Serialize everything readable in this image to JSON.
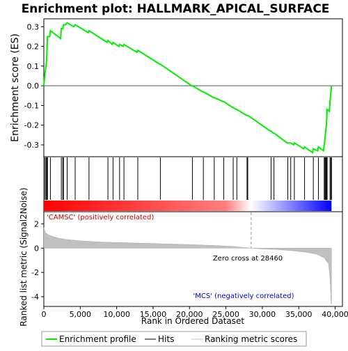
{
  "chart_data": {
    "type": "line",
    "title": "Enrichment plot: HALLMARK_APICAL_SURFACE",
    "es_panel": {
      "ylabel": "Enrichment score (ES)",
      "ylim": [
        -0.36,
        0.34
      ],
      "yticks": [
        -0.3,
        -0.2,
        -0.1,
        0.0,
        0.1,
        0.2,
        0.3
      ],
      "ytick_labels": [
        "-0.3",
        "-0.2",
        "-0.1",
        "0.0",
        "0.1",
        "0.2",
        "0.3"
      ],
      "zero_line": true,
      "series": [
        {
          "name": "Enrichment profile",
          "color": "#00ee00",
          "points": [
            [
              0,
              0.0
            ],
            [
              150,
              0.06
            ],
            [
              300,
              0.1
            ],
            [
              400,
              0.14
            ],
            [
              450,
              0.2
            ],
            [
              500,
              0.25
            ],
            [
              800,
              0.25
            ],
            [
              900,
              0.28
            ],
            [
              2300,
              0.24
            ],
            [
              2400,
              0.29
            ],
            [
              2600,
              0.29
            ],
            [
              2700,
              0.31
            ],
            [
              3000,
              0.31
            ],
            [
              3200,
              0.32
            ],
            [
              4100,
              0.3
            ],
            [
              4300,
              0.31
            ],
            [
              6100,
              0.27
            ],
            [
              6200,
              0.28
            ],
            [
              8700,
              0.22
            ],
            [
              8800,
              0.23
            ],
            [
              9400,
              0.21
            ],
            [
              9500,
              0.22
            ],
            [
              10300,
              0.2
            ],
            [
              10400,
              0.21
            ],
            [
              10900,
              0.2
            ],
            [
              11000,
              0.21
            ],
            [
              12800,
              0.17
            ],
            [
              12900,
              0.18
            ],
            [
              15900,
              0.11
            ],
            [
              16000,
              0.11
            ],
            [
              20300,
              0.0
            ],
            [
              20400,
              0.0
            ],
            [
              21800,
              -0.03
            ],
            [
              21900,
              -0.03
            ],
            [
              23300,
              -0.06
            ],
            [
              23400,
              -0.06
            ],
            [
              24600,
              -0.08
            ],
            [
              24700,
              -0.08
            ],
            [
              25900,
              -0.11
            ],
            [
              26000,
              -0.11
            ],
            [
              26400,
              -0.12
            ],
            [
              26500,
              -0.12
            ],
            [
              27800,
              -0.15
            ],
            [
              27900,
              -0.15
            ],
            [
              28000,
              -0.15
            ],
            [
              31100,
              -0.23
            ],
            [
              31200,
              -0.23
            ],
            [
              31500,
              -0.24
            ],
            [
              31600,
              -0.24
            ],
            [
              33400,
              -0.29
            ],
            [
              33500,
              -0.29
            ],
            [
              33800,
              -0.29
            ],
            [
              33900,
              -0.29
            ],
            [
              34300,
              -0.3
            ],
            [
              34400,
              -0.29
            ],
            [
              35700,
              -0.32
            ],
            [
              35800,
              -0.31
            ],
            [
              36900,
              -0.34
            ],
            [
              37000,
              -0.32
            ],
            [
              37600,
              -0.33
            ],
            [
              37700,
              -0.31
            ],
            [
              38400,
              -0.33
            ],
            [
              38500,
              -0.3
            ],
            [
              38600,
              -0.27
            ],
            [
              38700,
              -0.23
            ],
            [
              38800,
              -0.2
            ],
            [
              38900,
              -0.12
            ],
            [
              39200,
              -0.13
            ],
            [
              39300,
              -0.08
            ],
            [
              39400,
              -0.04
            ],
            [
              39500,
              0.0
            ]
          ]
        }
      ]
    },
    "hits_panel": {
      "series_name": "Hits",
      "hit_positions": [
        150,
        300,
        400,
        450,
        500,
        900,
        2400,
        2600,
        2700,
        3200,
        4300,
        6200,
        8800,
        9500,
        10400,
        11000,
        12900,
        16000,
        20400,
        21900,
        23400,
        24700,
        26000,
        26500,
        27900,
        28000,
        31200,
        31600,
        33500,
        33900,
        34400,
        35800,
        37000,
        37700,
        38500,
        38600,
        38700,
        38800,
        38900,
        39300,
        39400,
        39500
      ],
      "gradient_stops": [
        [
          0,
          "#ff0000"
        ],
        [
          25000,
          "#ff7f7f"
        ],
        [
          28460,
          "#ffffff"
        ],
        [
          34000,
          "#8080ff"
        ],
        [
          39500,
          "#0000ff"
        ]
      ]
    },
    "metric_panel": {
      "ylabel": "Ranked list metric (Signal2Noise)",
      "ylim": [
        -4.8,
        3.0
      ],
      "yticks": [
        -4,
        -2,
        0,
        2
      ],
      "ytick_labels": [
        "-4",
        "-2",
        "0",
        "2"
      ],
      "series": [
        {
          "name": "Ranking metric scores",
          "color": "#c0c0c0",
          "points": [
            [
              0,
              1.7
            ],
            [
              200,
              1.3
            ],
            [
              500,
              1.15
            ],
            [
              1000,
              1.0
            ],
            [
              2000,
              0.82
            ],
            [
              3000,
              0.72
            ],
            [
              5000,
              0.6
            ],
            [
              8000,
              0.5
            ],
            [
              12000,
              0.43
            ],
            [
              16000,
              0.36
            ],
            [
              20000,
              0.3
            ],
            [
              24000,
              0.2
            ],
            [
              26000,
              0.14
            ],
            [
              28460,
              0.0
            ],
            [
              30000,
              -0.06
            ],
            [
              32000,
              -0.12
            ],
            [
              34000,
              -0.2
            ],
            [
              36000,
              -0.34
            ],
            [
              37500,
              -0.5
            ],
            [
              38500,
              -0.8
            ],
            [
              39100,
              -1.3
            ],
            [
              39300,
              -2.5
            ],
            [
              39450,
              -4.6
            ],
            [
              39500,
              -4.6
            ]
          ]
        }
      ],
      "annotations": {
        "positive": "'CAMSC' (positively correlated)",
        "negative": "'MCS' (negatively correlated)",
        "zero_cross": "Zero cross at 28460",
        "zero_cross_x": 28460
      }
    },
    "xaxis": {
      "label": "Rank in Ordered Dataset",
      "xlim": [
        0,
        41000
      ],
      "ticks": [
        0,
        5000,
        10000,
        15000,
        20000,
        25000,
        30000,
        35000,
        40000
      ],
      "tick_labels": [
        "0",
        "5,000",
        "10,000",
        "15,000",
        "20,000",
        "25,000",
        "30,000",
        "35,000",
        "40,000"
      ]
    },
    "legend": {
      "placement": "bottom",
      "entries": [
        {
          "label": "Enrichment profile",
          "color": "#00ee00"
        },
        {
          "label": "Hits",
          "color": "#000000"
        },
        {
          "label": "Ranking metric scores",
          "color": "#c0c0c0"
        }
      ]
    }
  }
}
